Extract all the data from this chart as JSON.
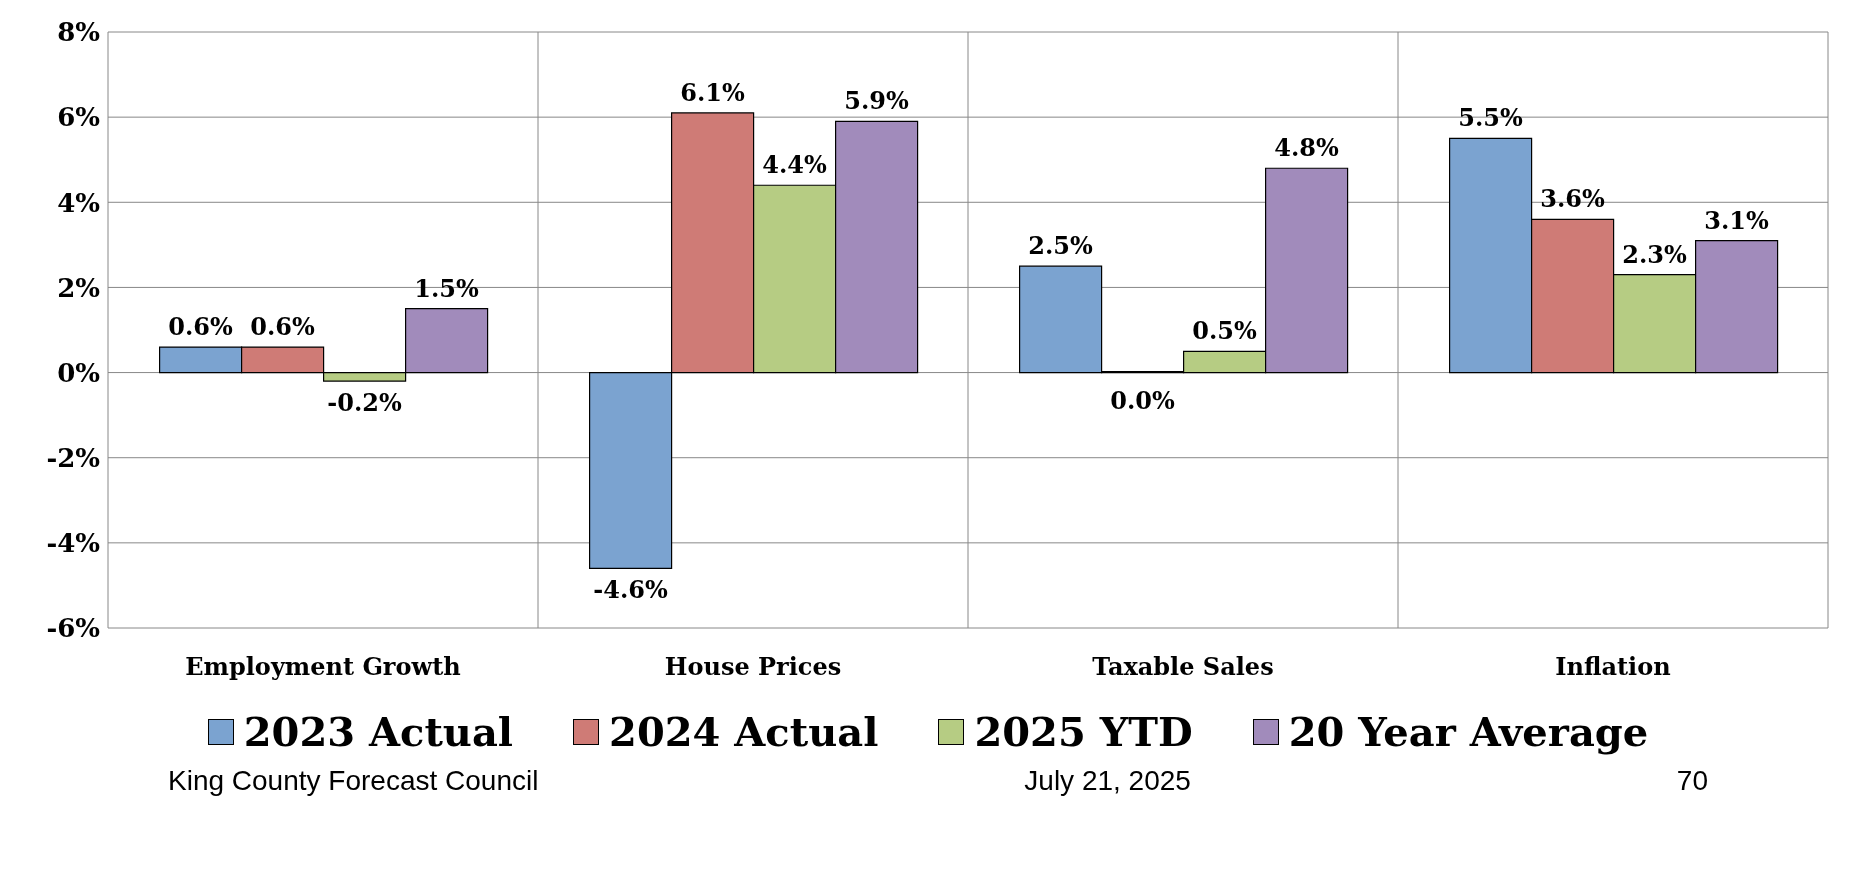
{
  "chart_data": {
    "type": "bar",
    "categories": [
      "Employment Growth",
      "House Prices",
      "Taxable Sales",
      "Inflation"
    ],
    "series": [
      {
        "name": "2023 Actual",
        "color": "#7ba3d0",
        "values": [
          0.6,
          -4.6,
          2.5,
          5.5
        ],
        "value_labels": [
          "0.6%",
          "-4.6%",
          "2.5%",
          "5.5%"
        ]
      },
      {
        "name": "2024 Actual",
        "color": "#cf7b76",
        "values": [
          0.6,
          6.1,
          0.0,
          3.6
        ],
        "value_labels": [
          "0.6%",
          "6.1%",
          "0.0%",
          "3.6%"
        ]
      },
      {
        "name": "2025 YTD",
        "color": "#b6cc83",
        "values": [
          -0.2,
          4.4,
          0.5,
          2.3
        ],
        "value_labels": [
          "-0.2%",
          "4.4%",
          "0.5%",
          "2.3%"
        ]
      },
      {
        "name": "20 Year Average",
        "color": "#a18bbb",
        "values": [
          1.5,
          5.9,
          4.8,
          3.1
        ],
        "value_labels": [
          "1.5%",
          "5.9%",
          "4.8%",
          "3.1%"
        ]
      }
    ],
    "ylim": [
      -6,
      8
    ],
    "yticks": [
      {
        "value": -6,
        "label": "-6%"
      },
      {
        "value": -4,
        "label": "-4%"
      },
      {
        "value": -2,
        "label": "-2%"
      },
      {
        "value": 0,
        "label": "0%"
      },
      {
        "value": 2,
        "label": "2%"
      },
      {
        "value": 4,
        "label": "4%"
      },
      {
        "value": 6,
        "label": "6%"
      },
      {
        "value": 8,
        "label": "8%"
      }
    ],
    "grid": true,
    "legend": "bottom",
    "annotations": [
      "King County Forecast Council",
      "July 21, 2025",
      "70"
    ]
  }
}
